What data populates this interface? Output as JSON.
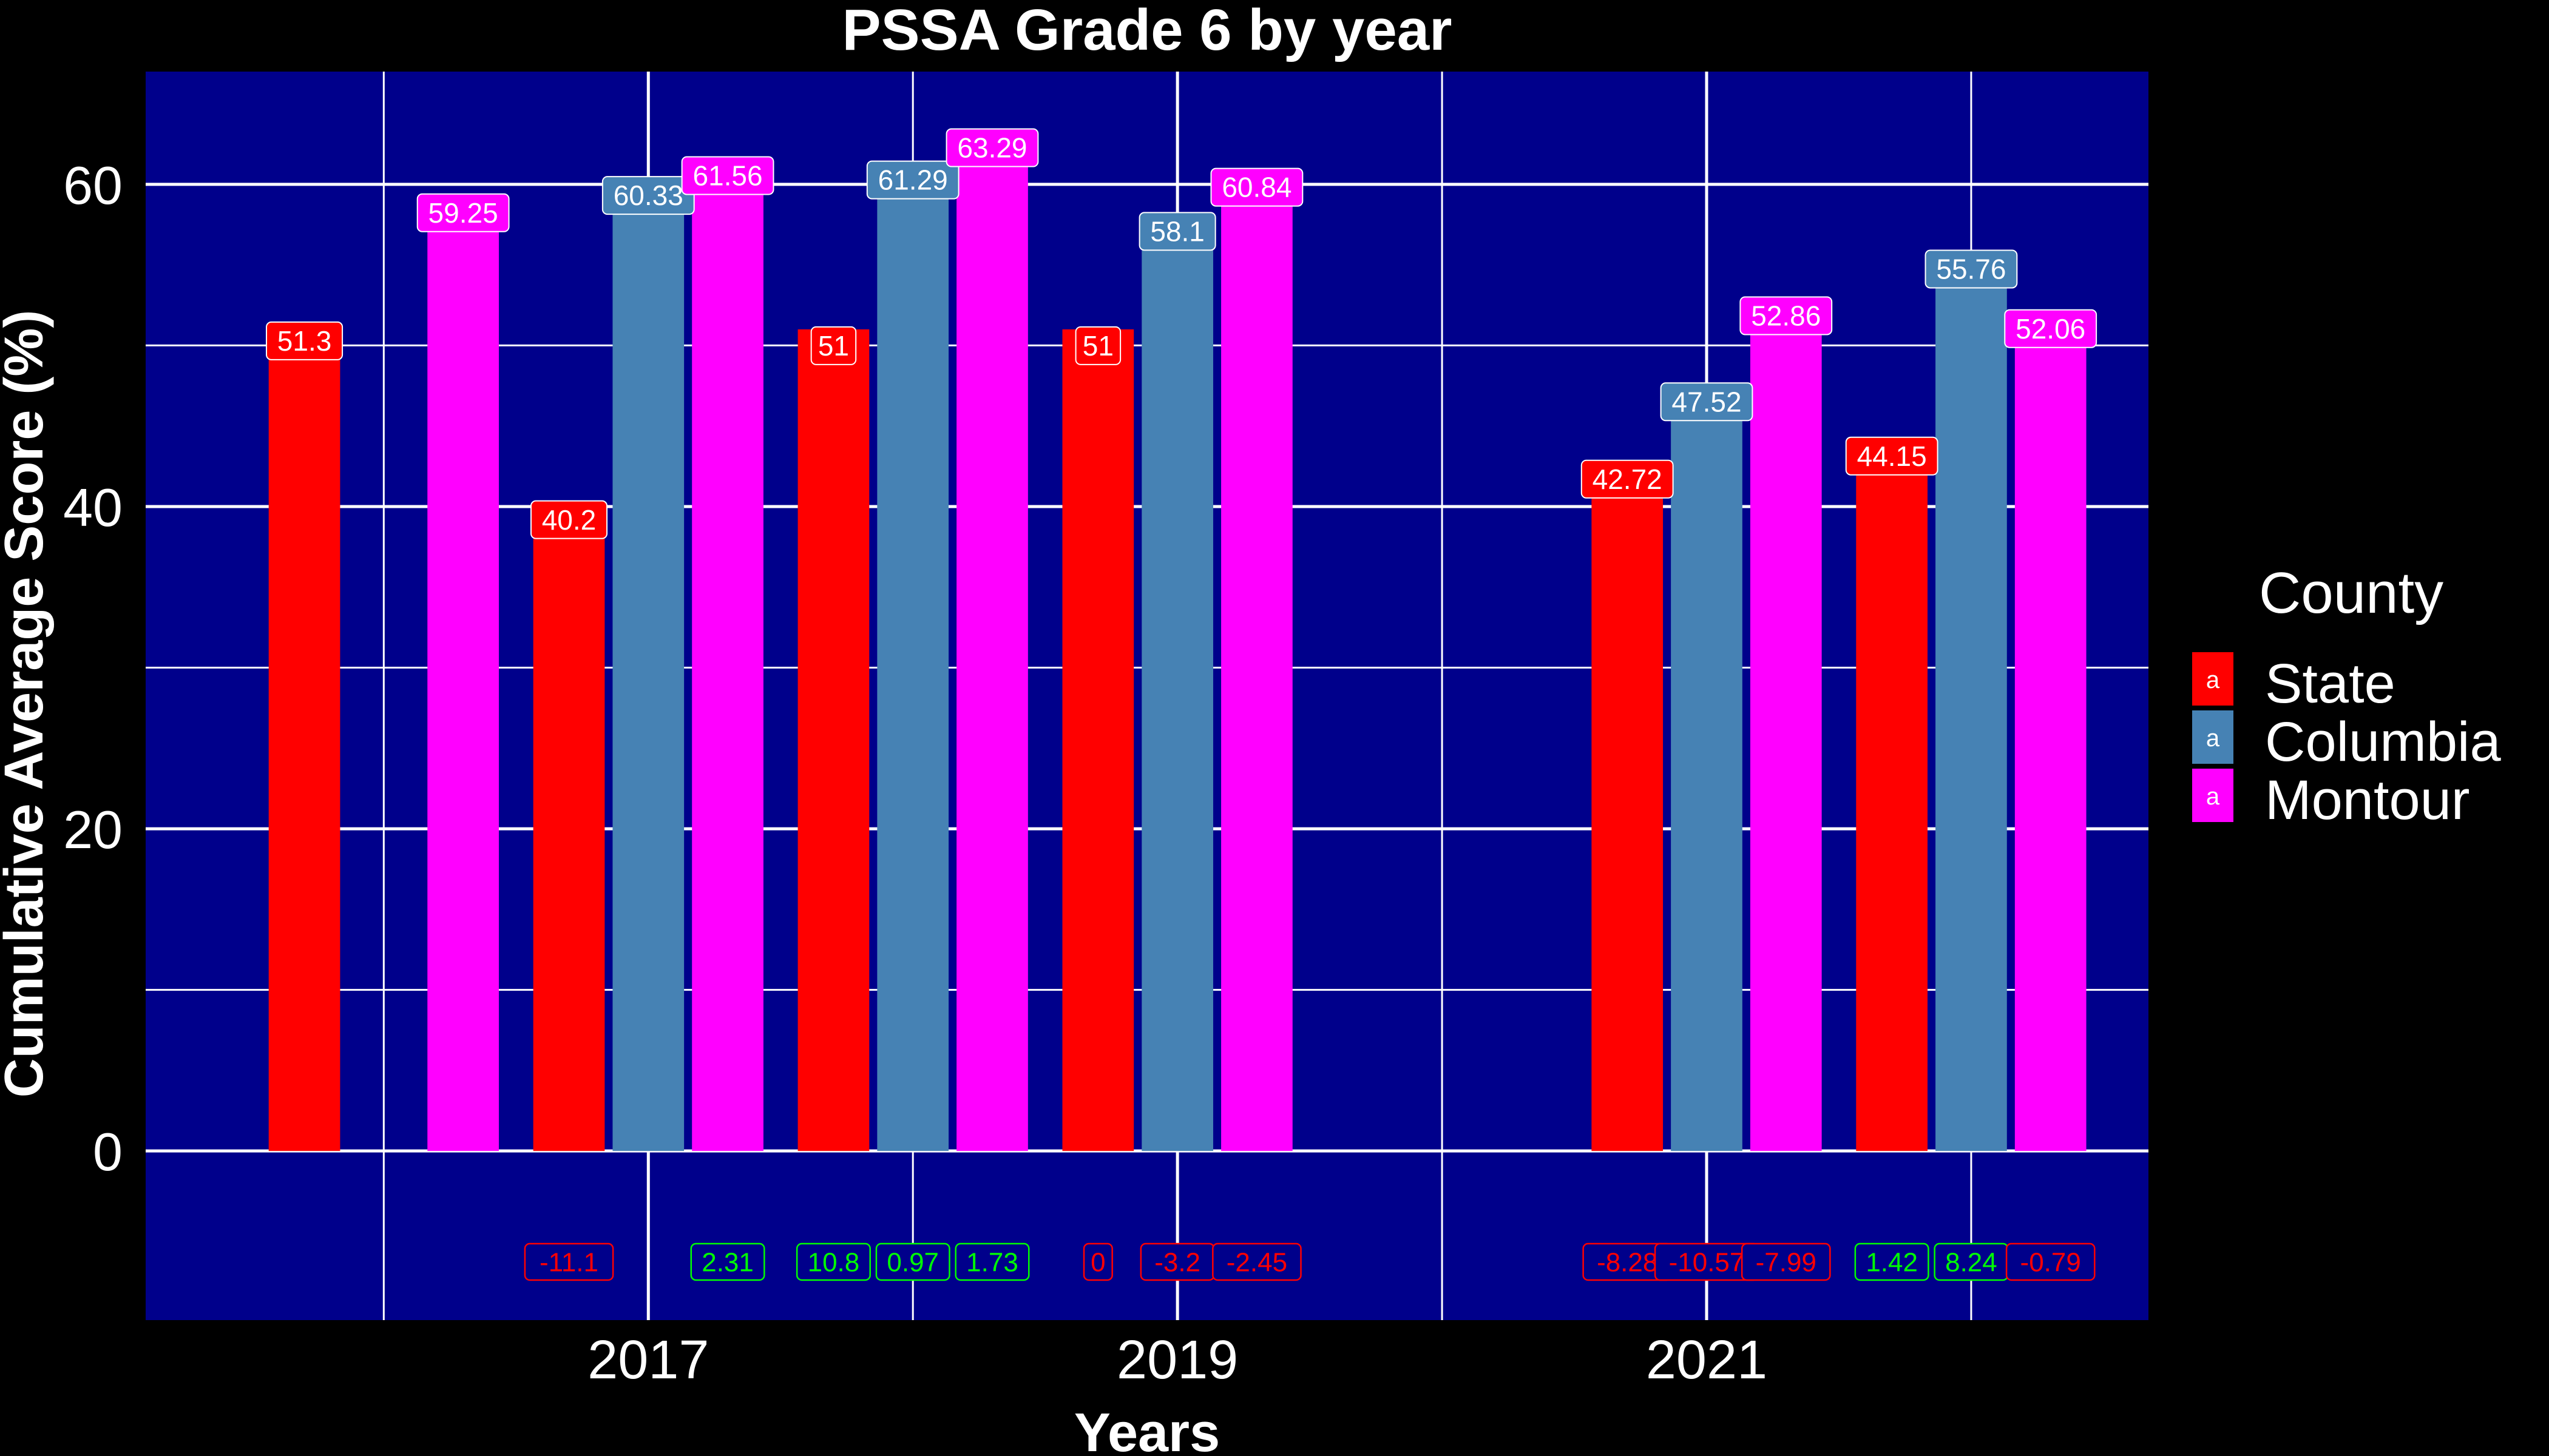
{
  "chart_data": {
    "type": "bar",
    "title": "PSSA Grade 6 by year",
    "xlabel": "Years",
    "ylabel": "Cumulative Average Score (%)",
    "ylim": [
      -10.5,
      67
    ],
    "y_ticks": [
      0,
      20,
      40,
      60
    ],
    "x_ticks": [
      2017,
      2019,
      2021
    ],
    "xlim": [
      2015.1,
      2022.67
    ],
    "grid": true,
    "legend": {
      "title": "County",
      "key_glyph": "a",
      "placement": "right"
    },
    "series": [
      {
        "name": "State",
        "color": "#FF0000",
        "points": [
          {
            "x": 2016,
            "value": 51.3,
            "label": "51.3"
          },
          {
            "x": 2017,
            "value": 40.2,
            "label": "40.2"
          },
          {
            "x": 2018,
            "value": 51,
            "label": "51"
          },
          {
            "x": 2019,
            "value": 51,
            "label": "51"
          },
          {
            "x": 2021,
            "value": 42.72,
            "label": "42.72"
          },
          {
            "x": 2022,
            "value": 44.15,
            "label": "44.15"
          }
        ]
      },
      {
        "name": "Columbia",
        "color": "#4682B4",
        "points": [
          {
            "x": 2017,
            "value": 60.33,
            "label": "60.33"
          },
          {
            "x": 2018,
            "value": 61.29,
            "label": "61.29"
          },
          {
            "x": 2019,
            "value": 58.1,
            "label": "58.1"
          },
          {
            "x": 2021,
            "value": 47.52,
            "label": "47.52"
          },
          {
            "x": 2022,
            "value": 55.76,
            "label": "55.76"
          }
        ]
      },
      {
        "name": "Montour",
        "color": "#FF00FF",
        "points": [
          {
            "x": 2016,
            "value": 59.25,
            "label": "59.25"
          },
          {
            "x": 2017,
            "value": 61.56,
            "label": "61.56"
          },
          {
            "x": 2018,
            "value": 63.29,
            "label": "63.29"
          },
          {
            "x": 2019,
            "value": 60.84,
            "label": "60.84"
          },
          {
            "x": 2021,
            "value": 52.86,
            "label": "52.86"
          },
          {
            "x": 2022,
            "value": 52.06,
            "label": "52.06"
          }
        ]
      }
    ],
    "change_labels": [
      {
        "x": 2017,
        "series": "State",
        "value": -11.1,
        "label": "-11.1"
      },
      {
        "x": 2017,
        "series": "Montour",
        "value": 2.31,
        "label": "2.31"
      },
      {
        "x": 2018,
        "series": "State",
        "value": 10.8,
        "label": "10.8"
      },
      {
        "x": 2018,
        "series": "Columbia",
        "value": 0.97,
        "label": "0.97"
      },
      {
        "x": 2018,
        "series": "Montour",
        "value": 1.73,
        "label": "1.73"
      },
      {
        "x": 2019,
        "series": "State",
        "value": 0,
        "label": "0"
      },
      {
        "x": 2019,
        "series": "Columbia",
        "value": -3.2,
        "label": "-3.2"
      },
      {
        "x": 2019,
        "series": "Montour",
        "value": -2.45,
        "label": "-2.45"
      },
      {
        "x": 2021,
        "series": "State",
        "value": -8.28,
        "label": "-8.28"
      },
      {
        "x": 2021,
        "series": "Columbia",
        "value": -10.57,
        "label": "-10.57"
      },
      {
        "x": 2021,
        "series": "Montour",
        "value": -7.99,
        "label": "-7.99"
      },
      {
        "x": 2022,
        "series": "State",
        "value": 1.42,
        "label": "1.42"
      },
      {
        "x": 2022,
        "series": "Columbia",
        "value": 8.24,
        "label": "8.24"
      },
      {
        "x": 2022,
        "series": "Montour",
        "value": -0.79,
        "label": "-0.79"
      }
    ],
    "colors": {
      "page_background": "#000000",
      "panel_background": "#00008B",
      "grid": "#FFFFFF",
      "positive_change": "#00FF00",
      "negative_change": "#FF0000"
    }
  }
}
